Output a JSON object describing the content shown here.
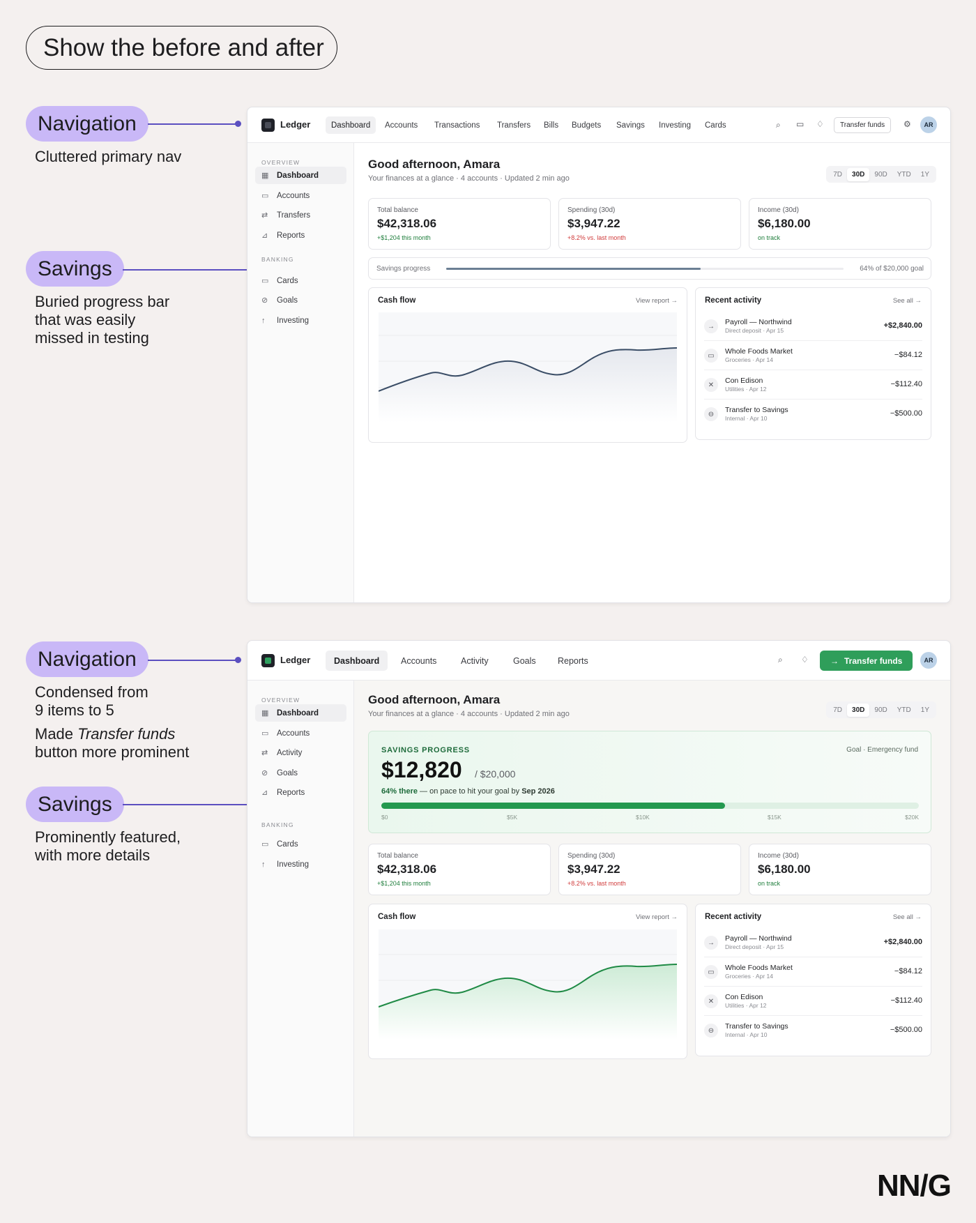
{
  "page_title": "Show the before and after",
  "footer_logo": "NN/G",
  "annotations": {
    "before": {
      "navigation": {
        "tag": "Navigation",
        "text": "Cluttered primary nav"
      },
      "savings": {
        "tag": "Savings",
        "text_lines": [
          "Buried progress bar",
          "that was easily",
          "missed in testing"
        ]
      }
    },
    "after": {
      "navigation": {
        "tag": "Navigation",
        "text_lines_1": [
          "Condensed from",
          "9 items to 5"
        ],
        "text_prefix": "Made",
        "text_italic": "Transfer funds",
        "text_suffix": "button more prominent"
      },
      "savings": {
        "tag": "Savings",
        "text_lines": [
          "Prominently featured,",
          "with more details"
        ]
      }
    }
  },
  "before": {
    "brand": "Ledger",
    "nav": [
      "Dashboard",
      "Accounts",
      "Transactions",
      "Transfers",
      "Bills",
      "Budgets",
      "Savings",
      "Investing",
      "Cards"
    ],
    "active_nav": "Dashboard",
    "transfer_button": "Transfer funds",
    "avatar": "AR",
    "icons": [
      "search-icon",
      "chat-icon",
      "bell-icon",
      "gear-icon"
    ],
    "sidebar": {
      "overview_heading": "OVERVIEW",
      "overview_items": [
        {
          "label": "Dashboard",
          "icon": "grid-icon"
        },
        {
          "label": "Accounts",
          "icon": "card-icon"
        },
        {
          "label": "Transfers",
          "icon": "swap-icon"
        },
        {
          "label": "Reports",
          "icon": "chart-icon"
        }
      ],
      "banking_heading": "BANKING",
      "banking_items": [
        {
          "label": "Cards",
          "icon": "card-icon"
        },
        {
          "label": "Goals",
          "icon": "check-circle-icon"
        },
        {
          "label": "Investing",
          "icon": "trend-icon"
        }
      ]
    },
    "greeting": "Good afternoon, Amara",
    "subtitle": "Your finances at a glance · 4 accounts · Updated 2 min ago",
    "ranges": [
      "7D",
      "30D",
      "90D",
      "YTD",
      "1Y"
    ],
    "active_range": "30D",
    "stats": [
      {
        "label": "Total balance",
        "value": "$42,318.06",
        "change": "+$1,204 this month",
        "tone": "up"
      },
      {
        "label": "Spending (30d)",
        "value": "$3,947.22",
        "change": "+8.2% vs. last month",
        "tone": "down"
      },
      {
        "label": "Income (30d)",
        "value": "$6,180.00",
        "change": "on track",
        "tone": "up"
      }
    ],
    "savings": {
      "label": "Savings progress",
      "goal_text": "64% of $20,000 goal",
      "progress": 0.64
    },
    "cashflow": {
      "title": "Cash flow",
      "link": "View report →"
    },
    "activity": {
      "title": "Recent activity",
      "link": "See all →",
      "items": [
        {
          "name": "Payroll — Northwind",
          "sub": "Direct deposit · Apr 15",
          "amount": "+$2,840.00",
          "icon": "arrow-right-icon"
        },
        {
          "name": "Whole Foods Market",
          "sub": "Groceries · Apr 14",
          "amount": "−$84.12",
          "icon": "card-icon"
        },
        {
          "name": "Con Edison",
          "sub": "Utilities · Apr 12",
          "amount": "−$112.40",
          "icon": "close-icon"
        },
        {
          "name": "Transfer to Savings",
          "sub": "Internal · Apr 10",
          "amount": "−$500.00",
          "icon": "minus-circle-icon"
        }
      ]
    }
  },
  "after": {
    "brand": "Ledger",
    "nav": [
      "Dashboard",
      "Accounts",
      "Activity",
      "Goals",
      "Reports"
    ],
    "active_nav": "Dashboard",
    "transfer_button": "Transfer funds",
    "avatar": "AR",
    "icons": [
      "search-icon",
      "bell-icon",
      "arrow-right-icon"
    ],
    "sidebar": {
      "overview_heading": "OVERVIEW",
      "overview_items": [
        {
          "label": "Dashboard",
          "icon": "grid-icon"
        },
        {
          "label": "Accounts",
          "icon": "card-icon"
        },
        {
          "label": "Activity",
          "icon": "swap-icon"
        },
        {
          "label": "Goals",
          "icon": "check-circle-icon"
        },
        {
          "label": "Reports",
          "icon": "chart-icon"
        }
      ],
      "banking_heading": "BANKING",
      "banking_items": [
        {
          "label": "Cards",
          "icon": "card-icon"
        },
        {
          "label": "Investing",
          "icon": "trend-icon"
        }
      ]
    },
    "greeting": "Good afternoon, Amara",
    "subtitle": "Your finances at a glance · 4 accounts · Updated 2 min ago",
    "ranges": [
      "7D",
      "30D",
      "90D",
      "YTD",
      "1Y"
    ],
    "active_range": "30D",
    "savings": {
      "heading": "SAVINGS PROGRESS",
      "goal_label": "Goal · Emergency fund",
      "amount": "$12,820",
      "target": "/ $20,000",
      "pct_text": "64% there",
      "pace_text": "— on pace to hit your goal by",
      "date": "Sep 2026",
      "progress": 0.64,
      "ticks": [
        "$0",
        "$5K",
        "$10K",
        "$15K",
        "$20K"
      ]
    },
    "stats": [
      {
        "label": "Total balance",
        "value": "$42,318.06",
        "change": "+$1,204 this month",
        "tone": "up"
      },
      {
        "label": "Spending (30d)",
        "value": "$3,947.22",
        "change": "+8.2% vs. last month",
        "tone": "down"
      },
      {
        "label": "Income (30d)",
        "value": "$6,180.00",
        "change": "on track",
        "tone": "up"
      }
    ],
    "cashflow": {
      "title": "Cash flow",
      "link": "View report →"
    },
    "activity": {
      "title": "Recent activity",
      "link": "See all →",
      "items": [
        {
          "name": "Payroll — Northwind",
          "sub": "Direct deposit · Apr 15",
          "amount": "+$2,840.00",
          "icon": "arrow-right-icon"
        },
        {
          "name": "Whole Foods Market",
          "sub": "Groceries · Apr 14",
          "amount": "−$84.12",
          "icon": "card-icon"
        },
        {
          "name": "Con Edison",
          "sub": "Utilities · Apr 12",
          "amount": "−$112.40",
          "icon": "close-icon"
        },
        {
          "name": "Transfer to Savings",
          "sub": "Internal · Apr 10",
          "amount": "−$500.00",
          "icon": "minus-circle-icon"
        }
      ]
    }
  },
  "colors": {
    "accent": "#c9b8f7",
    "leader": "#5b4fc0",
    "green": "#2f9e5a",
    "slate": "#6b7f94"
  }
}
